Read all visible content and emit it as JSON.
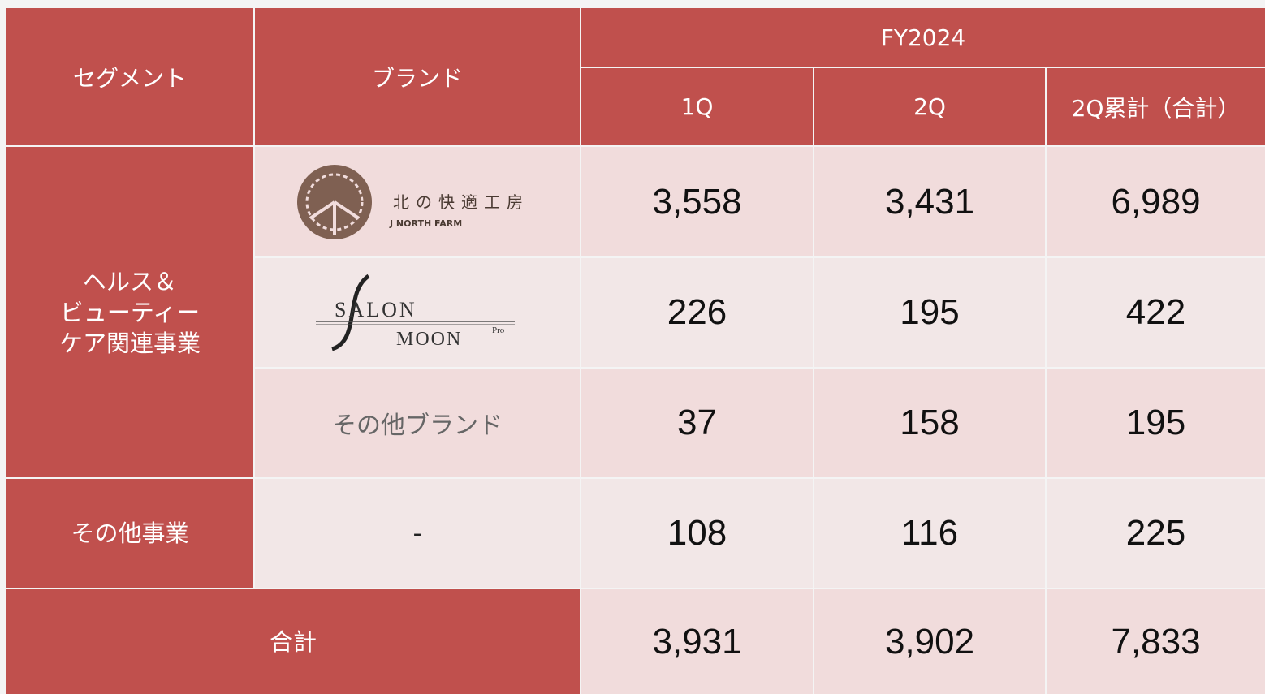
{
  "header": {
    "segment": "セグメント",
    "brand": "ブランド",
    "period": "FY2024",
    "columns": [
      "1Q",
      "2Q",
      "2Q累計（合計）"
    ]
  },
  "segments": [
    {
      "lines": [
        "ヘルス＆",
        "ビューティー",
        "ケア関連事業"
      ]
    },
    {
      "lines": [
        "その他事業"
      ]
    }
  ],
  "rows": [
    {
      "logo": {
        "name": "北の快適工房",
        "sub": "J NORTH FARM"
      },
      "values": [
        "3,558",
        "3,431",
        "6,989"
      ]
    },
    {
      "logo": {
        "name": "SALON",
        "sub": "MOON",
        "mark": "Pro"
      },
      "values": [
        "226",
        "195",
        "422"
      ]
    },
    {
      "brand": "その他ブランド",
      "values": [
        "37",
        "158",
        "195"
      ]
    },
    {
      "brand": "-",
      "values": [
        "108",
        "116",
        "225"
      ]
    }
  ],
  "total": {
    "label": "合計",
    "values": [
      "3,931",
      "3,902",
      "7,833"
    ]
  }
}
